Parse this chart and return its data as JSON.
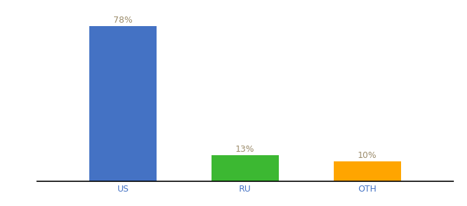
{
  "categories": [
    "US",
    "RU",
    "OTH"
  ],
  "values": [
    78,
    13,
    10
  ],
  "labels": [
    "78%",
    "13%",
    "10%"
  ],
  "bar_colors": [
    "#4472C4",
    "#3CB832",
    "#FFA500"
  ],
  "tick_color": "#4472C4",
  "label_color": "#9B8B6A",
  "ylim": [
    0,
    88
  ],
  "background_color": "#ffffff",
  "label_fontsize": 9,
  "tick_fontsize": 9,
  "bar_width": 0.55,
  "figsize": [
    6.8,
    3.0
  ],
  "dpi": 100
}
